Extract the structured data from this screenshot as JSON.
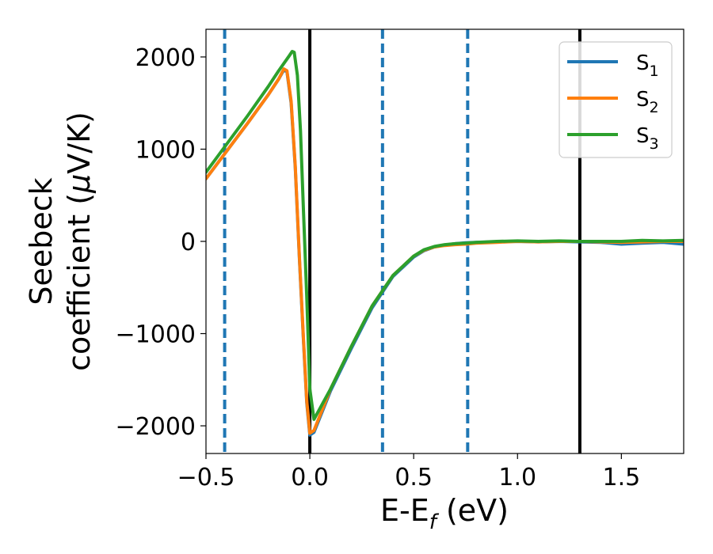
{
  "chart_data": {
    "type": "line",
    "xlabel_main": "E-E",
    "xlabel_sub": "f",
    "xlabel_unit": " (eV)",
    "ylabel_line1": "Seebeck",
    "ylabel_line2_a": "coefficient  (",
    "ylabel_mu": "μ",
    "ylabel_line2_b": "V/K)",
    "xlim": [
      -0.5,
      1.8
    ],
    "ylim": [
      -2300,
      2300
    ],
    "xticks": [
      -0.5,
      0.0,
      0.5,
      1.0,
      1.5
    ],
    "xtick_labels": [
      "−0.5",
      "0.0",
      "0.5",
      "1.0",
      "1.5"
    ],
    "yticks": [
      -2000,
      -1000,
      0,
      1000,
      2000
    ],
    "ytick_labels": [
      "−2000",
      "−1000",
      "0",
      "1000",
      "2000"
    ],
    "legend_position": "top-right",
    "vlines_solid": [
      0.0,
      1.3
    ],
    "vlines_dashed": [
      -0.41,
      0.35,
      0.76
    ],
    "vline_solid_color": "#000000",
    "vline_dashed_color": "#1f77b4",
    "series": [
      {
        "name_main": "S",
        "name_sub": "1",
        "color": "#1f77b4",
        "x": [
          -0.5,
          -0.3,
          -0.2,
          -0.15,
          -0.125,
          -0.11,
          -0.09,
          -0.07,
          -0.05,
          -0.03,
          -0.015,
          0.0,
          0.02,
          0.1,
          0.2,
          0.3,
          0.4,
          0.5,
          0.55,
          0.6,
          0.65,
          0.7,
          0.75,
          0.8,
          0.9,
          1.0,
          1.1,
          1.2,
          1.3,
          1.4,
          1.5,
          1.6,
          1.7,
          1.8
        ],
        "y": [
          680,
          1280,
          1590,
          1760,
          1860,
          1840,
          1500,
          800,
          -200,
          -1100,
          -1750,
          -2100,
          -2070,
          -1620,
          -1160,
          -720,
          -380,
          -170,
          -100,
          -60,
          -40,
          -25,
          -15,
          -10,
          -5,
          0,
          -5,
          0,
          -5,
          -10,
          -30,
          -20,
          -10,
          -30
        ]
      },
      {
        "name_main": "S",
        "name_sub": "2",
        "color": "#ff7f0e",
        "x": [
          -0.5,
          -0.3,
          -0.2,
          -0.15,
          -0.125,
          -0.11,
          -0.09,
          -0.07,
          -0.05,
          -0.03,
          -0.015,
          0.0,
          0.02,
          0.1,
          0.2,
          0.3,
          0.4,
          0.5,
          0.55,
          0.6,
          0.65,
          0.7,
          0.75,
          0.8,
          0.9,
          1.0,
          1.1,
          1.2,
          1.3,
          1.4,
          1.5,
          1.6,
          1.7,
          1.8
        ],
        "y": [
          680,
          1280,
          1590,
          1760,
          1870,
          1850,
          1520,
          820,
          -180,
          -1080,
          -1730,
          -2080,
          -2050,
          -1600,
          -1140,
          -700,
          -370,
          -160,
          -95,
          -60,
          -45,
          -35,
          -30,
          -20,
          -10,
          0,
          -5,
          0,
          0,
          -5,
          -10,
          -5,
          0,
          0
        ]
      },
      {
        "name_main": "S",
        "name_sub": "3",
        "color": "#2ca02c",
        "x": [
          -0.5,
          -0.3,
          -0.2,
          -0.15,
          -0.1,
          -0.085,
          -0.075,
          -0.06,
          -0.045,
          -0.03,
          -0.015,
          0.0,
          0.02,
          0.1,
          0.2,
          0.3,
          0.4,
          0.5,
          0.55,
          0.6,
          0.65,
          0.7,
          0.75,
          0.8,
          0.9,
          1.0,
          1.1,
          1.2,
          1.3,
          1.4,
          1.5,
          1.6,
          1.7,
          1.8
        ],
        "y": [
          750,
          1360,
          1680,
          1850,
          2010,
          2060,
          2050,
          1800,
          1200,
          300,
          -600,
          -1600,
          -1930,
          -1600,
          -1140,
          -700,
          -370,
          -160,
          -90,
          -55,
          -35,
          -25,
          -20,
          -10,
          0,
          5,
          0,
          5,
          0,
          0,
          0,
          10,
          5,
          10
        ]
      }
    ]
  }
}
